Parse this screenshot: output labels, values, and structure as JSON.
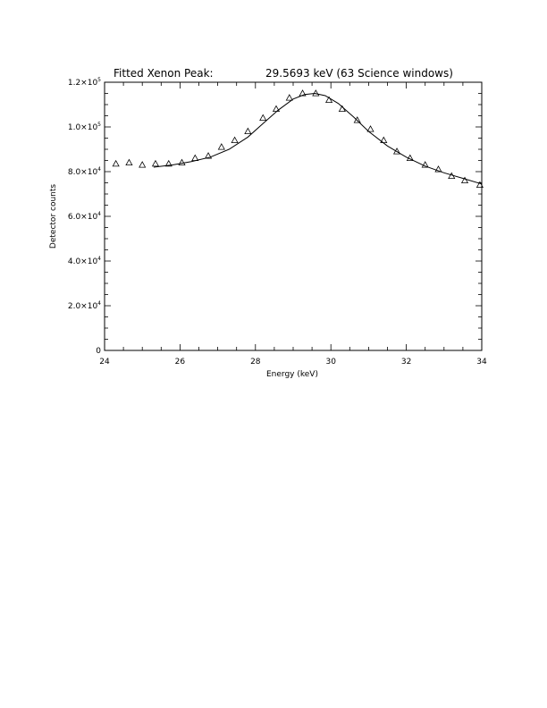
{
  "chart_data": {
    "type": "scatter",
    "title_left": "Fitted Xenon Peak:",
    "title_right": "29.5693 keV (63 Science windows)",
    "xlabel": "Energy (keV)",
    "ylabel": "Detector counts",
    "xlim": [
      24,
      34
    ],
    "ylim": [
      0,
      120000
    ],
    "x_ticks": [
      {
        "value": 24,
        "label": "24"
      },
      {
        "value": 26,
        "label": "26"
      },
      {
        "value": 28,
        "label": "28"
      },
      {
        "value": 30,
        "label": "30"
      },
      {
        "value": 32,
        "label": "32"
      },
      {
        "value": 34,
        "label": "34"
      }
    ],
    "y_ticks": [
      {
        "value": 0,
        "mantissa": "0",
        "exponent": ""
      },
      {
        "value": 20000,
        "mantissa": "2.0×10",
        "exponent": "4"
      },
      {
        "value": 40000,
        "mantissa": "4.0×10",
        "exponent": "4"
      },
      {
        "value": 60000,
        "mantissa": "6.0×10",
        "exponent": "4"
      },
      {
        "value": 80000,
        "mantissa": "8.0×10",
        "exponent": "4"
      },
      {
        "value": 100000,
        "mantissa": "1.0×10",
        "exponent": "5"
      },
      {
        "value": 120000,
        "mantissa": "1.2×10",
        "exponent": "5"
      }
    ],
    "x_minor_step": 0.5,
    "y_minor_step": 5000,
    "series": [
      {
        "marker": "triangle",
        "x": [
          24.3,
          24.65,
          25.0,
          25.35,
          25.7,
          26.05,
          26.4,
          26.75,
          27.1,
          27.45,
          27.8,
          28.2,
          28.55,
          28.9,
          29.25,
          29.6,
          29.95,
          30.3,
          30.7,
          31.05,
          31.4,
          31.75,
          32.1,
          32.5,
          32.85,
          33.2,
          33.55,
          33.95
        ],
        "y": [
          83500,
          84000,
          83000,
          83500,
          83500,
          84000,
          86000,
          87000,
          91000,
          94000,
          98000,
          104000,
          108000,
          113000,
          115000,
          115000,
          112000,
          108000,
          103000,
          99000,
          94000,
          89000,
          86000,
          83000,
          81000,
          78000,
          76000,
          74000
        ]
      }
    ],
    "fit": {
      "x": [
        25.3,
        25.8,
        26.3,
        26.8,
        27.3,
        27.8,
        28.2,
        28.6,
        29.0,
        29.3,
        29.57,
        29.85,
        30.2,
        30.6,
        31.0,
        31.5,
        32.0,
        32.5,
        33.0,
        33.5,
        34.0
      ],
      "y": [
        82000,
        83000,
        84500,
        86500,
        90000,
        95500,
        101500,
        107500,
        112500,
        114500,
        115000,
        114000,
        110500,
        104500,
        98000,
        91500,
        86500,
        82500,
        79500,
        77000,
        74500
      ]
    }
  }
}
